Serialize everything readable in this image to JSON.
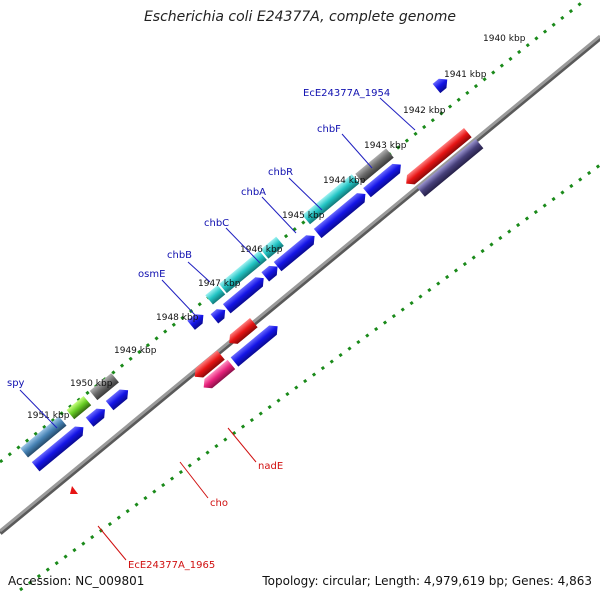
{
  "title": "Escherichia coli E24377A, complete genome",
  "footer": {
    "accession": "Accession: NC_009801",
    "summary": "Topology: circular; Length: 4,979,619 bp; Genes: 4,863"
  },
  "ticks": [
    "1940 kbp",
    "1941 kbp",
    "1942 kbp",
    "1943 kbp",
    "1944 kbp",
    "1945 kbp",
    "1946 kbp",
    "1947 kbp",
    "1948 kbp",
    "1949 kbp",
    "1950 kbp",
    "1951 kbp"
  ],
  "gene_labels": {
    "EcE24377A_1954": "EcE24377A_1954",
    "chbF": "chbF",
    "chbR": "chbR",
    "chbA": "chbA",
    "chbC": "chbC",
    "chbB": "chbB",
    "osmE": "osmE",
    "spy": "spy",
    "nadE": "nadE",
    "cho": "cho",
    "EcE24377A_1965": "EcE24377A_1965"
  },
  "colors": {
    "blue": "#1414e6",
    "cyan": "#22c4c4",
    "gray": "#6a6a6a",
    "red": "#e61414",
    "magenta": "#e6207a",
    "navy": "#47407a",
    "steel": "#4682b4",
    "green": "#66cc22",
    "tick": "#1a8a1a",
    "backbone": "#8a8a8a"
  }
}
